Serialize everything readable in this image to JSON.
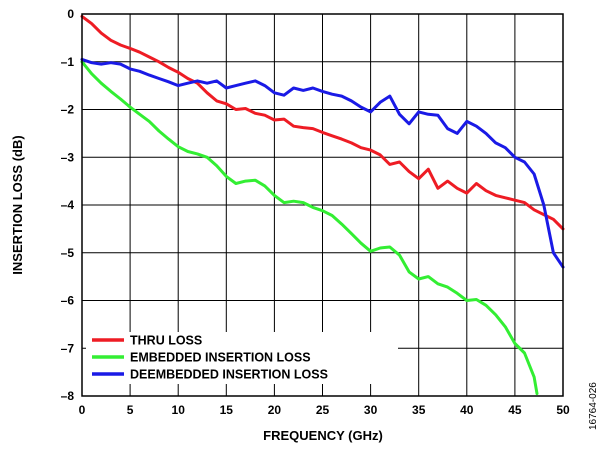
{
  "chart_data": {
    "type": "line",
    "xlabel": "FREQUENCY (GHz)",
    "ylabel": "INSERTION LOSS (dB)",
    "xlim": [
      0,
      50
    ],
    "ylim": [
      -8,
      0
    ],
    "x_ticks": [
      0,
      5,
      10,
      15,
      20,
      25,
      30,
      35,
      40,
      45,
      50
    ],
    "y_ticks": [
      0,
      -1,
      -2,
      -3,
      -4,
      -5,
      -6,
      -7,
      -8
    ],
    "grid": true,
    "legend_position": "bottom-left",
    "figure_id": "16764-026",
    "series": [
      {
        "name": "THRU LOSS",
        "color": "#ee1c24",
        "points": [
          [
            0,
            -0.05
          ],
          [
            1,
            -0.2
          ],
          [
            2,
            -0.4
          ],
          [
            3,
            -0.55
          ],
          [
            4,
            -0.65
          ],
          [
            5,
            -0.72
          ],
          [
            6,
            -0.8
          ],
          [
            7,
            -0.9
          ],
          [
            8,
            -1.0
          ],
          [
            9,
            -1.12
          ],
          [
            10,
            -1.22
          ],
          [
            11,
            -1.35
          ],
          [
            12,
            -1.45
          ],
          [
            13,
            -1.65
          ],
          [
            14,
            -1.82
          ],
          [
            15,
            -1.88
          ],
          [
            16,
            -2.0
          ],
          [
            17,
            -1.98
          ],
          [
            18,
            -2.08
          ],
          [
            19,
            -2.12
          ],
          [
            20,
            -2.22
          ],
          [
            21,
            -2.2
          ],
          [
            22,
            -2.35
          ],
          [
            23,
            -2.38
          ],
          [
            24,
            -2.4
          ],
          [
            25,
            -2.48
          ],
          [
            26,
            -2.55
          ],
          [
            27,
            -2.62
          ],
          [
            28,
            -2.7
          ],
          [
            29,
            -2.8
          ],
          [
            30,
            -2.85
          ],
          [
            31,
            -2.95
          ],
          [
            32,
            -3.15
          ],
          [
            33,
            -3.1
          ],
          [
            34,
            -3.3
          ],
          [
            35,
            -3.45
          ],
          [
            36,
            -3.25
          ],
          [
            37,
            -3.65
          ],
          [
            38,
            -3.5
          ],
          [
            39,
            -3.65
          ],
          [
            40,
            -3.75
          ],
          [
            41,
            -3.55
          ],
          [
            42,
            -3.7
          ],
          [
            43,
            -3.8
          ],
          [
            44,
            -3.85
          ],
          [
            45,
            -3.9
          ],
          [
            46,
            -3.95
          ],
          [
            47,
            -4.1
          ],
          [
            48,
            -4.2
          ],
          [
            49,
            -4.3
          ],
          [
            50,
            -4.5
          ]
        ]
      },
      {
        "name": "EMBEDDED INSERTION LOSS",
        "color": "#33ee33",
        "points": [
          [
            0,
            -1.0
          ],
          [
            1,
            -1.25
          ],
          [
            2,
            -1.45
          ],
          [
            3,
            -1.62
          ],
          [
            4,
            -1.78
          ],
          [
            5,
            -1.95
          ],
          [
            6,
            -2.1
          ],
          [
            7,
            -2.25
          ],
          [
            8,
            -2.45
          ],
          [
            9,
            -2.62
          ],
          [
            10,
            -2.78
          ],
          [
            11,
            -2.88
          ],
          [
            12,
            -2.93
          ],
          [
            13,
            -3.0
          ],
          [
            14,
            -3.18
          ],
          [
            15,
            -3.4
          ],
          [
            16,
            -3.55
          ],
          [
            17,
            -3.5
          ],
          [
            18,
            -3.48
          ],
          [
            19,
            -3.6
          ],
          [
            20,
            -3.8
          ],
          [
            21,
            -3.95
          ],
          [
            22,
            -3.92
          ],
          [
            23,
            -3.95
          ],
          [
            24,
            -4.05
          ],
          [
            25,
            -4.12
          ],
          [
            26,
            -4.22
          ],
          [
            27,
            -4.4
          ],
          [
            28,
            -4.6
          ],
          [
            29,
            -4.8
          ],
          [
            30,
            -4.97
          ],
          [
            31,
            -4.9
          ],
          [
            32,
            -4.88
          ],
          [
            33,
            -5.05
          ],
          [
            34,
            -5.4
          ],
          [
            35,
            -5.55
          ],
          [
            36,
            -5.5
          ],
          [
            37,
            -5.65
          ],
          [
            38,
            -5.72
          ],
          [
            39,
            -5.85
          ],
          [
            40,
            -6.0
          ],
          [
            41,
            -5.98
          ],
          [
            42,
            -6.1
          ],
          [
            43,
            -6.3
          ],
          [
            44,
            -6.55
          ],
          [
            45,
            -6.9
          ],
          [
            46,
            -7.1
          ],
          [
            47,
            -7.6
          ],
          [
            47.3,
            -7.95
          ]
        ]
      },
      {
        "name": "DEEMBEDDED INSERTION LOSS",
        "color": "#1a1ae6",
        "points": [
          [
            0,
            -0.95
          ],
          [
            1,
            -1.02
          ],
          [
            2,
            -1.05
          ],
          [
            3,
            -1.02
          ],
          [
            4,
            -1.05
          ],
          [
            5,
            -1.15
          ],
          [
            6,
            -1.2
          ],
          [
            7,
            -1.28
          ],
          [
            8,
            -1.35
          ],
          [
            9,
            -1.42
          ],
          [
            10,
            -1.5
          ],
          [
            11,
            -1.45
          ],
          [
            12,
            -1.4
          ],
          [
            13,
            -1.45
          ],
          [
            14,
            -1.4
          ],
          [
            15,
            -1.55
          ],
          [
            16,
            -1.5
          ],
          [
            17,
            -1.45
          ],
          [
            18,
            -1.4
          ],
          [
            19,
            -1.5
          ],
          [
            20,
            -1.65
          ],
          [
            21,
            -1.7
          ],
          [
            22,
            -1.55
          ],
          [
            23,
            -1.6
          ],
          [
            24,
            -1.55
          ],
          [
            25,
            -1.62
          ],
          [
            26,
            -1.68
          ],
          [
            27,
            -1.72
          ],
          [
            28,
            -1.82
          ],
          [
            29,
            -1.95
          ],
          [
            30,
            -2.05
          ],
          [
            31,
            -1.85
          ],
          [
            32,
            -1.72
          ],
          [
            33,
            -2.1
          ],
          [
            34,
            -2.3
          ],
          [
            35,
            -2.05
          ],
          [
            36,
            -2.1
          ],
          [
            37,
            -2.12
          ],
          [
            38,
            -2.4
          ],
          [
            39,
            -2.5
          ],
          [
            40,
            -2.25
          ],
          [
            41,
            -2.35
          ],
          [
            42,
            -2.5
          ],
          [
            43,
            -2.7
          ],
          [
            44,
            -2.8
          ],
          [
            45,
            -3.0
          ],
          [
            46,
            -3.1
          ],
          [
            47,
            -3.35
          ],
          [
            48,
            -4.0
          ],
          [
            49,
            -5.0
          ],
          [
            50,
            -5.3
          ]
        ]
      }
    ]
  }
}
